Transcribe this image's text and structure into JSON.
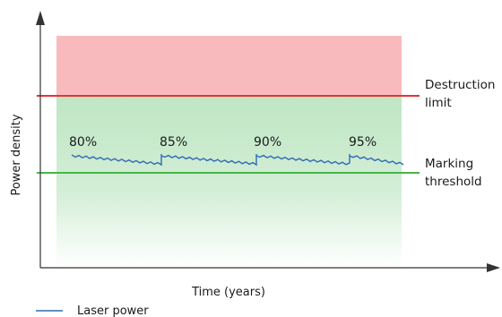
{
  "axes": {
    "xlabel": "Time (years)",
    "ylabel": "Power density"
  },
  "zones": {
    "upper_color": "#f9babd",
    "lower_color": "#bfe6c4"
  },
  "lines": {
    "destruction": {
      "label_line1": "Destruction",
      "label_line2": "limit",
      "color": "#e63434"
    },
    "marking": {
      "label_line1": "Marking",
      "label_line2": "threshold",
      "color": "#46b649"
    }
  },
  "laser": {
    "color": "#2f6bb3",
    "segment_labels": [
      "80%",
      "85%",
      "90%",
      "95%"
    ]
  },
  "legend": {
    "entry": "Laser power"
  }
}
